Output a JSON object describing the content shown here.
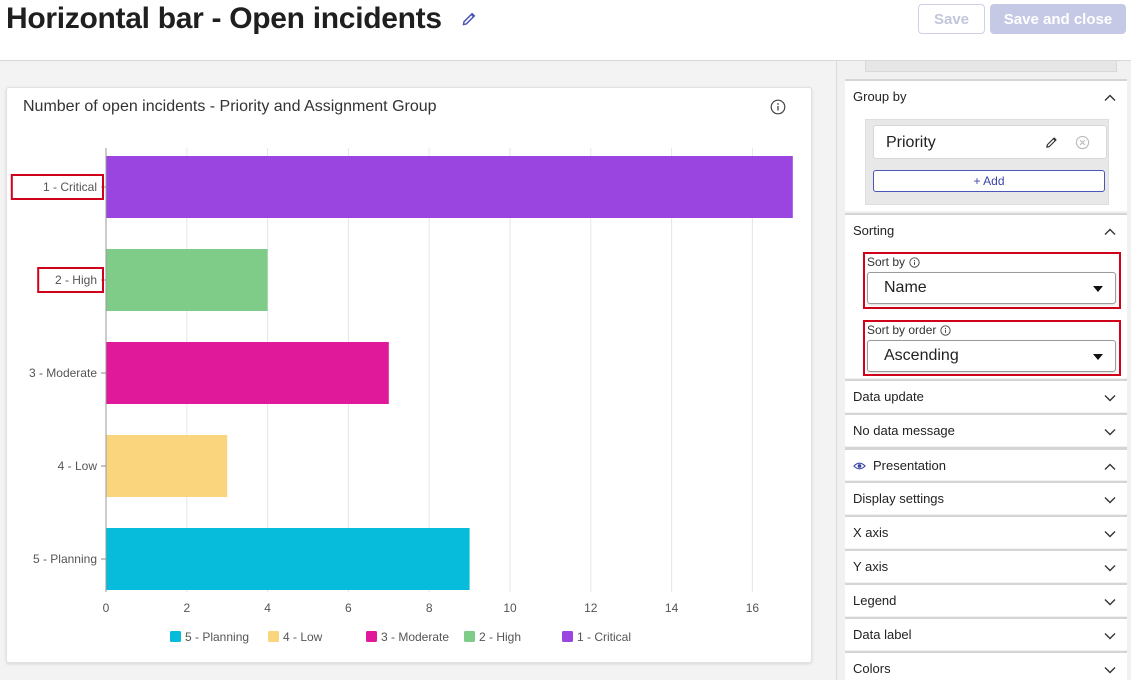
{
  "header": {
    "title": "Horizontal bar - Open incidents",
    "save_label": "Save",
    "save_close_label": "Save and close"
  },
  "card": {
    "title": "Number of open incidents - Priority and Assignment Group"
  },
  "chart_data": {
    "type": "bar",
    "orientation": "horizontal",
    "title": "Number of open incidents - Priority and Assignment Group",
    "categories": [
      "1 - Critical",
      "2 - High",
      "3 - Moderate",
      "4 - Low",
      "5 - Planning"
    ],
    "values": [
      17,
      4,
      7,
      3,
      9
    ],
    "colors": [
      "#9b45e0",
      "#7fcc88",
      "#e0199a",
      "#fbd57e",
      "#06bcda"
    ],
    "xlim": [
      0,
      17
    ],
    "xticks": [
      "0",
      "2",
      "4",
      "6",
      "8",
      "10",
      "12",
      "14",
      "16"
    ],
    "grid": true,
    "legend_position": "bottom",
    "legend": [
      {
        "label": "5 - Planning",
        "color": "#06bcda"
      },
      {
        "label": "4 - Low",
        "color": "#fbd57e"
      },
      {
        "label": "3 - Moderate",
        "color": "#e0199a"
      },
      {
        "label": "2 - High",
        "color": "#7fcc88"
      },
      {
        "label": "1 - Critical",
        "color": "#9b45e0"
      }
    ],
    "highlighted_labels": [
      "1 - Critical",
      "2 - High"
    ]
  },
  "panel": {
    "group_by": {
      "label": "Group by",
      "chip": "Priority",
      "add_label": "+ Add"
    },
    "sorting": {
      "label": "Sorting",
      "sort_by_label": "Sort by",
      "sort_by_value": "Name",
      "sort_order_label": "Sort by order",
      "sort_order_value": "Ascending"
    },
    "sections": [
      {
        "label": "Data update"
      },
      {
        "label": "No data message"
      },
      {
        "label": "Presentation"
      },
      {
        "label": "Display settings"
      },
      {
        "label": "X axis"
      },
      {
        "label": "Y axis"
      },
      {
        "label": "Legend"
      },
      {
        "label": "Data label"
      },
      {
        "label": "Colors"
      }
    ]
  },
  "colors": {
    "accent": "#3a46a8",
    "highlight_frame": "#d0021b"
  }
}
